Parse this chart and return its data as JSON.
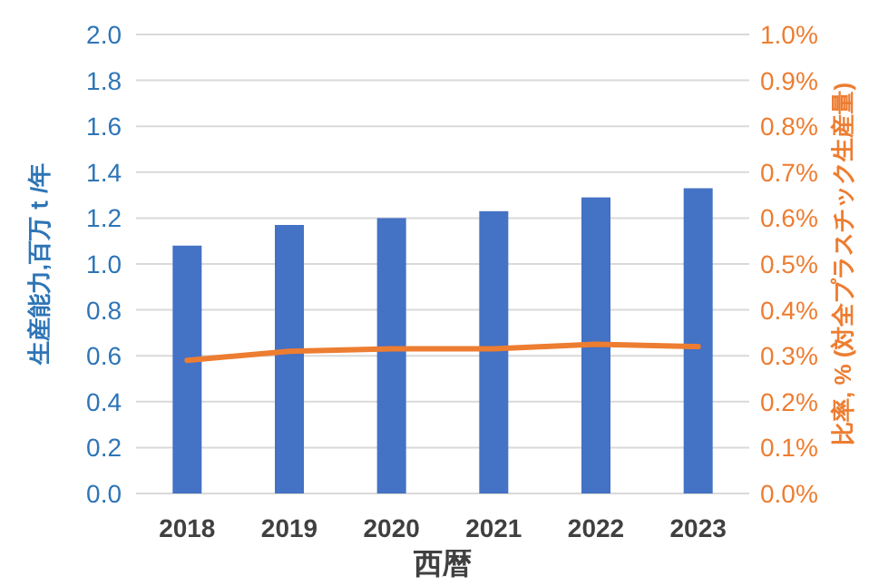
{
  "chart_data": {
    "type": "bar",
    "xlabel": "西暦",
    "ylabel": "生産能力,百万ｔ/年",
    "y2label": "比率, % (対全プラスチック生産量)",
    "categories": [
      "2018",
      "2019",
      "2020",
      "2021",
      "2022",
      "2023"
    ],
    "series": [
      {
        "color": "#4472c4",
        "values": [
          1.08,
          1.17,
          1.2,
          1.23,
          1.29,
          1.33
        ]
      },
      {
        "type": "line",
        "axis": "y2",
        "color": "#ed7d31",
        "values": [
          0.29,
          0.31,
          0.315,
          0.315,
          0.325,
          0.32
        ]
      }
    ],
    "ylim": [
      0,
      2
    ],
    "yticks": [
      {
        "value": 0,
        "label": "0.0"
      },
      {
        "value": 0.2,
        "label": "0.2"
      },
      {
        "value": 0.4,
        "label": "0.4"
      },
      {
        "value": 0.6,
        "label": "0.6"
      },
      {
        "value": 0.8,
        "label": "0.8"
      },
      {
        "value": 1,
        "label": "1.0"
      },
      {
        "value": 1.2,
        "label": "1.2"
      },
      {
        "value": 1.4,
        "label": "1.4"
      },
      {
        "value": 1.6,
        "label": "1.6"
      },
      {
        "value": 1.8,
        "label": "1.8"
      },
      {
        "value": 2,
        "label": "2.0"
      }
    ],
    "y2lim": [
      0,
      1
    ],
    "y2ticks": [
      {
        "value": 0,
        "label": "0.0%"
      },
      {
        "value": 0.1,
        "label": "0.1%"
      },
      {
        "value": 0.2,
        "label": "0.2%"
      },
      {
        "value": 0.3,
        "label": "0.3%"
      },
      {
        "value": 0.4,
        "label": "0.4%"
      },
      {
        "value": 0.5,
        "label": "0.5%"
      },
      {
        "value": 0.6,
        "label": "0.6%"
      },
      {
        "value": 0.7,
        "label": "0.7%"
      },
      {
        "value": 0.8,
        "label": "0.8%"
      },
      {
        "value": 0.9,
        "label": "0.9%"
      },
      {
        "value": 1,
        "label": "1.0%"
      }
    ],
    "grid": "y"
  }
}
